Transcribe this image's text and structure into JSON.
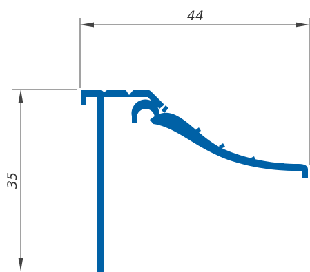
{
  "diagram": {
    "type": "aluminium-profile-cross-section",
    "dimensions": {
      "width": {
        "value": "44"
      },
      "height": {
        "value": "35"
      }
    },
    "colors": {
      "profile": "#0061a6",
      "dimension_lines": "#444444",
      "dimension_text": "#333333",
      "background": "#ffffff"
    }
  }
}
